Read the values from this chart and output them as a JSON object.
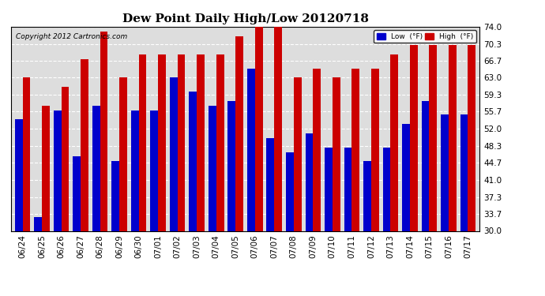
{
  "title": "Dew Point Daily High/Low 20120718",
  "copyright": "Copyright 2012 Cartronics.com",
  "categories": [
    "06/24",
    "06/25",
    "06/26",
    "06/27",
    "06/28",
    "06/29",
    "06/30",
    "07/01",
    "07/02",
    "07/03",
    "07/04",
    "07/05",
    "07/06",
    "07/07",
    "07/08",
    "07/09",
    "07/10",
    "07/11",
    "07/12",
    "07/13",
    "07/14",
    "07/15",
    "07/16",
    "07/17"
  ],
  "low_values": [
    54,
    33,
    56,
    46,
    57,
    45,
    56,
    56,
    63,
    60,
    57,
    58,
    65,
    50,
    47,
    51,
    48,
    48,
    45,
    48,
    53,
    58,
    55,
    55
  ],
  "high_values": [
    63,
    57,
    61,
    67,
    73,
    63,
    68,
    68,
    68,
    68,
    68,
    72,
    74,
    74,
    63,
    65,
    63,
    65,
    65,
    68,
    70,
    70,
    70,
    70
  ],
  "low_color": "#0000cc",
  "high_color": "#cc0000",
  "bg_color": "#ffffff",
  "plot_bg_color": "#dddddd",
  "grid_color": "#ffffff",
  "ylim": [
    30.0,
    74.0
  ],
  "ymin": 30.0,
  "yticks": [
    30.0,
    33.7,
    37.3,
    41.0,
    44.7,
    48.3,
    52.0,
    55.7,
    59.3,
    63.0,
    66.7,
    70.3,
    74.0
  ],
  "legend_low_label": "Low  (°F)",
  "legend_high_label": "High  (°F)",
  "title_fontsize": 11,
  "tick_fontsize": 7.5,
  "bar_width": 0.4,
  "outer_border_color": "#000000"
}
